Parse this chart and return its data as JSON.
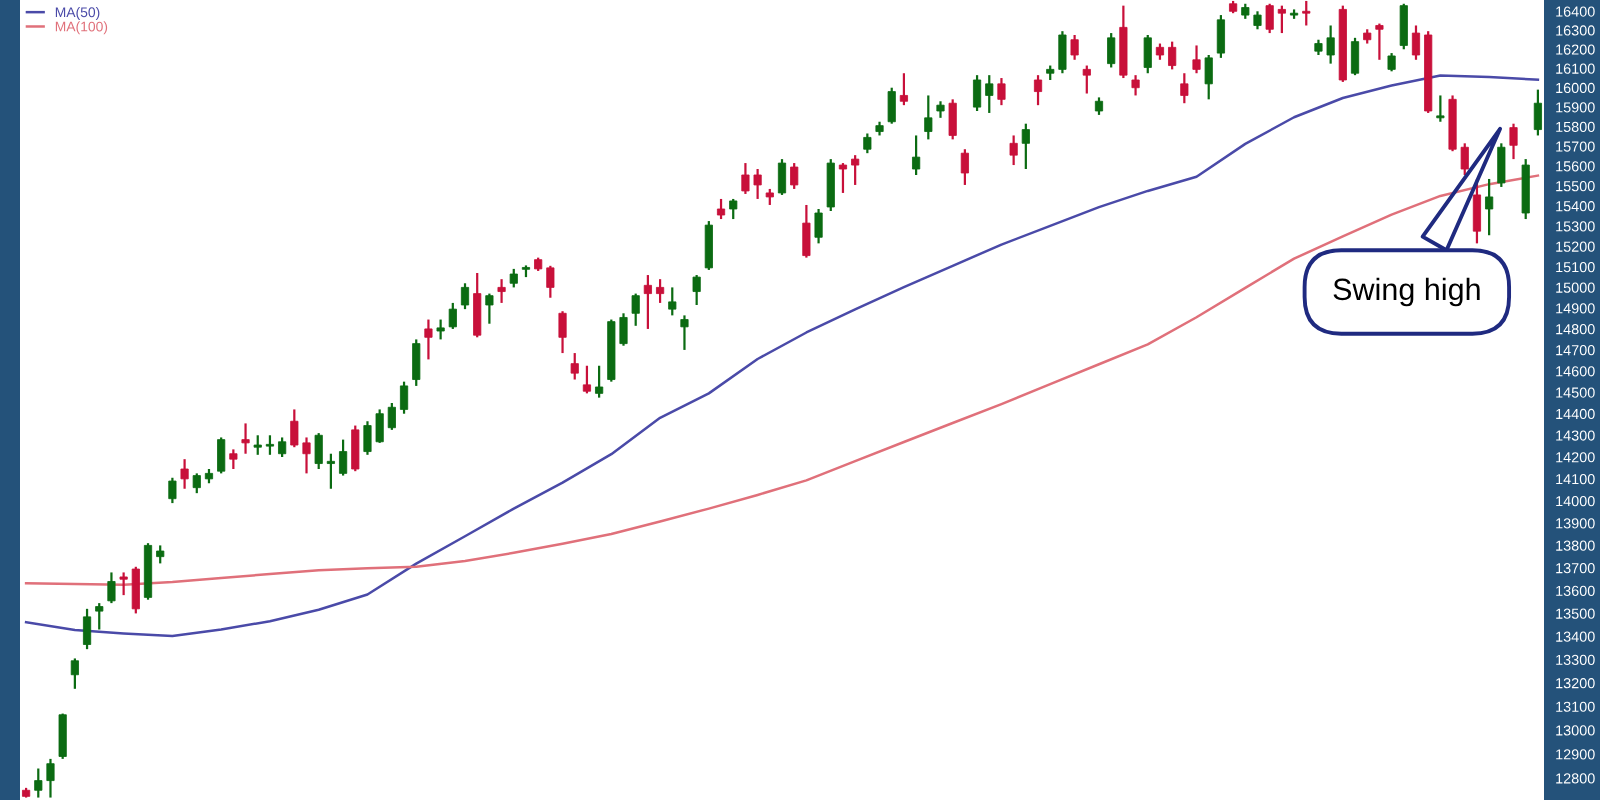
{
  "chart_data": {
    "type": "candlestick",
    "categories": [
      null,
      null,
      null,
      null,
      null,
      null,
      null,
      null,
      null,
      null,
      null,
      null,
      null,
      null,
      null,
      null,
      null,
      null,
      null,
      null,
      null,
      null,
      null,
      null,
      null,
      null,
      null,
      null,
      null,
      null,
      null,
      null,
      null,
      null,
      null,
      null,
      null,
      null,
      null,
      null,
      null,
      null,
      null,
      null,
      null,
      null,
      null,
      null,
      null,
      null,
      null,
      null,
      null,
      null,
      null,
      null,
      null,
      null,
      null,
      null,
      null,
      null,
      null,
      null,
      null,
      null,
      null,
      null,
      null,
      null,
      null,
      null,
      null,
      null,
      null,
      null,
      null,
      null,
      null,
      null,
      null,
      null,
      null,
      null,
      null,
      null,
      null,
      null,
      null,
      null,
      null,
      null,
      null,
      null,
      null,
      null,
      null,
      null,
      null,
      null,
      null,
      null,
      null,
      null,
      null,
      null,
      null,
      null,
      null,
      null,
      null,
      null,
      null,
      null,
      null,
      null,
      null,
      null,
      null,
      null,
      null,
      null,
      null,
      null,
      null
    ],
    "ohlc": [
      [
        12750,
        12760,
        12720,
        12725
      ],
      [
        12750,
        12840,
        12720,
        12790
      ],
      [
        12790,
        12880,
        12720,
        12860
      ],
      [
        12890,
        13070,
        12880,
        13065
      ],
      [
        13235,
        13305,
        13175,
        13295
      ],
      [
        13365,
        13520,
        13345,
        13485
      ],
      [
        13510,
        13545,
        13430,
        13530
      ],
      [
        13555,
        13680,
        13545,
        13640
      ],
      [
        13660,
        13680,
        13580,
        13650
      ],
      [
        13695,
        13705,
        13500,
        13520
      ],
      [
        13570,
        13810,
        13560,
        13800
      ],
      [
        13750,
        13800,
        13720,
        13775
      ],
      [
        14010,
        14105,
        13990,
        14090
      ],
      [
        14145,
        14190,
        14055,
        14100
      ],
      [
        14060,
        14125,
        14035,
        14115
      ],
      [
        14100,
        14145,
        14080,
        14125
      ],
      [
        14135,
        14290,
        14125,
        14280
      ],
      [
        14215,
        14235,
        14145,
        14190
      ],
      [
        14280,
        14355,
        14215,
        14265
      ],
      [
        14245,
        14300,
        14210,
        14255
      ],
      [
        14250,
        14300,
        14210,
        14258
      ],
      [
        14215,
        14290,
        14200,
        14270
      ],
      [
        14365,
        14420,
        14245,
        14255
      ],
      [
        14265,
        14290,
        14125,
        14215
      ],
      [
        14170,
        14310,
        14145,
        14300
      ],
      [
        14170,
        14215,
        14055,
        14180
      ],
      [
        14125,
        14280,
        14115,
        14225
      ],
      [
        14325,
        14345,
        14135,
        14145
      ],
      [
        14225,
        14365,
        14210,
        14345
      ],
      [
        14270,
        14420,
        14265,
        14400
      ],
      [
        14335,
        14450,
        14325,
        14430
      ],
      [
        14420,
        14550,
        14400,
        14530
      ],
      [
        14560,
        14750,
        14530,
        14730
      ],
      [
        14800,
        14845,
        14655,
        14760
      ],
      [
        14790,
        14845,
        14750,
        14805
      ],
      [
        14810,
        14925,
        14800,
        14895
      ],
      [
        14915,
        15020,
        14895,
        15000
      ],
      [
        14970,
        15070,
        14760,
        14770
      ],
      [
        14915,
        14970,
        14825,
        14960
      ],
      [
        15000,
        15040,
        14925,
        14980
      ],
      [
        15020,
        15090,
        15000,
        15065
      ],
      [
        15088,
        15107,
        15050,
        15097
      ],
      [
        15135,
        15145,
        15080,
        15090
      ],
      [
        15095,
        15105,
        14950,
        15000
      ],
      [
        14875,
        14885,
        14685,
        14760
      ],
      [
        14635,
        14685,
        14560,
        14590
      ],
      [
        14535,
        14625,
        14495,
        14505
      ],
      [
        14495,
        14625,
        14475,
        14525
      ],
      [
        14560,
        14845,
        14550,
        14835
      ],
      [
        14730,
        14875,
        14720,
        14855
      ],
      [
        14875,
        14970,
        14815,
        14960
      ],
      [
        15010,
        15060,
        14800,
        14970
      ],
      [
        15000,
        15040,
        14925,
        14970
      ],
      [
        14895,
        15000,
        14865,
        14930
      ],
      [
        14810,
        14865,
        14700,
        14845
      ],
      [
        14980,
        15060,
        14915,
        15050
      ],
      [
        15095,
        15325,
        15085,
        15305
      ],
      [
        15385,
        15435,
        15335,
        15355
      ],
      [
        15385,
        15435,
        15335,
        15425
      ],
      [
        15555,
        15615,
        15460,
        15475
      ],
      [
        15555,
        15585,
        15435,
        15505
      ],
      [
        15465,
        15485,
        15405,
        15445
      ],
      [
        15465,
        15635,
        15455,
        15615
      ],
      [
        15595,
        15615,
        15485,
        15505
      ],
      [
        15315,
        15405,
        15145,
        15155
      ],
      [
        15245,
        15385,
        15215,
        15365
      ],
      [
        15395,
        15635,
        15375,
        15615
      ],
      [
        15605,
        15615,
        15465,
        15585
      ],
      [
        15635,
        15655,
        15505,
        15605
      ],
      [
        15685,
        15765,
        15665,
        15745
      ],
      [
        15775,
        15825,
        15755,
        15805
      ],
      [
        15825,
        16000,
        15815,
        15980
      ],
      [
        15960,
        16075,
        15910,
        15930
      ],
      [
        15585,
        15755,
        15555,
        15645
      ],
      [
        15775,
        15960,
        15735,
        15845
      ],
      [
        15880,
        15930,
        15845,
        15910
      ],
      [
        15920,
        15940,
        15735,
        15755
      ],
      [
        15665,
        15685,
        15505,
        15565
      ],
      [
        15900,
        16065,
        15880,
        16040
      ],
      [
        15960,
        16065,
        15870,
        16020
      ],
      [
        16020,
        16050,
        15910,
        15940
      ],
      [
        15715,
        15755,
        15605,
        15655
      ],
      [
        15715,
        15815,
        15585,
        15785
      ],
      [
        16040,
        16065,
        15910,
        15980
      ],
      [
        16075,
        16115,
        16040,
        16095
      ],
      [
        16095,
        16295,
        16075,
        16275
      ],
      [
        16250,
        16275,
        16145,
        16170
      ],
      [
        16095,
        16115,
        15970,
        16065
      ],
      [
        15880,
        15950,
        15860,
        15930
      ],
      [
        16125,
        16285,
        16105,
        16260
      ],
      [
        16315,
        16430,
        16050,
        16065
      ],
      [
        16040,
        16065,
        15960,
        16000
      ],
      [
        16105,
        16275,
        16075,
        16260
      ],
      [
        16210,
        16230,
        16145,
        16170
      ],
      [
        16210,
        16240,
        16095,
        16115
      ],
      [
        16020,
        16075,
        15920,
        15960
      ],
      [
        16145,
        16220,
        16075,
        16095
      ],
      [
        16020,
        16170,
        15940,
        16155
      ],
      [
        16180,
        16380,
        16155,
        16355
      ],
      [
        16440,
        16455,
        16390,
        16400
      ],
      [
        16380,
        16440,
        16360,
        16420
      ],
      [
        16325,
        16400,
        16305,
        16380
      ],
      [
        16430,
        16440,
        16285,
        16305
      ],
      [
        16410,
        16430,
        16285,
        16390
      ],
      [
        16380,
        16410,
        16360,
        16390
      ],
      [
        16400,
        16455,
        16325,
        16390
      ],
      [
        16190,
        16250,
        16170,
        16230
      ],
      [
        16170,
        16325,
        16125,
        16260
      ],
      [
        16410,
        16430,
        16030,
        16040
      ],
      [
        16075,
        16260,
        16065,
        16240
      ],
      [
        16285,
        16305,
        16230,
        16250
      ],
      [
        16325,
        16335,
        16145,
        16305
      ],
      [
        16095,
        16180,
        16085,
        16165
      ],
      [
        16220,
        16440,
        16200,
        16430
      ],
      [
        16285,
        16325,
        16145,
        16170
      ],
      [
        16275,
        16295,
        15870,
        15880
      ],
      [
        15845,
        15960,
        15825,
        15855
      ],
      [
        15940,
        15960,
        15675,
        15685
      ],
      [
        15695,
        15715,
        15555,
        15585
      ],
      [
        15455,
        15535,
        15215,
        15275
      ],
      [
        15385,
        15535,
        15255,
        15445
      ],
      [
        15515,
        15715,
        15495,
        15695
      ],
      [
        15795,
        15815,
        15635,
        15705
      ],
      [
        15365,
        15635,
        15335,
        15605
      ],
      [
        15785,
        15990,
        15755,
        15920
      ]
    ],
    "series": [
      {
        "name": "MA(50)",
        "type": "line",
        "color": "#4a4aa8",
        "values": [
          13462,
          null,
          null,
          null,
          13428,
          null,
          null,
          null,
          13413,
          null,
          null,
          null,
          13402,
          null,
          null,
          null,
          13430,
          null,
          null,
          null,
          13466,
          null,
          null,
          null,
          13516,
          null,
          null,
          null,
          13583,
          null,
          null,
          null,
          13719,
          null,
          null,
          null,
          13841,
          null,
          null,
          null,
          13965,
          null,
          null,
          null,
          14083,
          null,
          null,
          null,
          14213,
          null,
          null,
          null,
          14381,
          null,
          null,
          null,
          14495,
          null,
          null,
          null,
          14657,
          null,
          null,
          null,
          14783,
          null,
          null,
          null,
          14894,
          null,
          null,
          null,
          15001,
          null,
          null,
          null,
          15105,
          null,
          null,
          null,
          15209,
          null,
          null,
          null,
          15301,
          null,
          null,
          null,
          15394,
          null,
          null,
          null,
          15475,
          null,
          null,
          null,
          15546,
          null,
          null,
          null,
          15712,
          null,
          null,
          null,
          15848,
          null,
          null,
          null,
          15947,
          null,
          null,
          null,
          16011,
          null,
          null,
          null,
          16063,
          null,
          null,
          null,
          16055,
          null,
          null,
          null,
          16042
        ]
      },
      {
        "name": "MA(100)",
        "type": "line",
        "color": "#e0707a",
        "values": [
          13632,
          null,
          null,
          null,
          13629,
          null,
          null,
          null,
          13626,
          null,
          null,
          null,
          13638,
          null,
          null,
          null,
          13655,
          null,
          null,
          null,
          13673,
          null,
          null,
          null,
          13690,
          null,
          null,
          null,
          13699,
          null,
          null,
          null,
          13705,
          null,
          null,
          null,
          13731,
          null,
          null,
          null,
          13767,
          null,
          null,
          null,
          13807,
          null,
          null,
          null,
          13851,
          null,
          null,
          null,
          13907,
          null,
          null,
          null,
          13965,
          null,
          null,
          null,
          14027,
          null,
          null,
          null,
          14093,
          null,
          null,
          null,
          14181,
          null,
          null,
          null,
          14269,
          null,
          null,
          null,
          14357,
          null,
          null,
          null,
          14445,
          null,
          null,
          null,
          14538,
          null,
          null,
          null,
          14632,
          null,
          null,
          null,
          14726,
          null,
          null,
          null,
          14856,
          null,
          null,
          null,
          14998,
          null,
          null,
          null,
          15140,
          null,
          null,
          null,
          15249,
          null,
          null,
          null,
          15357,
          null,
          null,
          null,
          15450,
          null,
          null,
          null,
          15509,
          null,
          null,
          null,
          15552
        ]
      }
    ],
    "colors": [
      "#c8103a",
      "#0b6b12",
      "#0b6b12",
      "#0b6b12",
      "#0b6b12",
      "#0b6b12",
      "#0b6b12",
      "#0b6b12",
      "#c8103a",
      "#c8103a",
      "#0b6b12",
      "#0b6b12",
      "#0b6b12",
      "#c8103a",
      "#0b6b12",
      "#0b6b12",
      "#0b6b12",
      "#c8103a",
      "#c8103a",
      "#0b6b12",
      "#0b6b12",
      "#0b6b12",
      "#c8103a",
      "#c8103a",
      "#0b6b12",
      "#0b6b12",
      "#0b6b12",
      "#c8103a",
      "#0b6b12",
      "#0b6b12",
      "#0b6b12",
      "#0b6b12",
      "#0b6b12",
      "#c8103a",
      "#0b6b12",
      "#0b6b12",
      "#0b6b12",
      "#c8103a",
      "#0b6b12",
      "#c8103a",
      "#0b6b12",
      "#0b6b12",
      "#c8103a",
      "#c8103a",
      "#c8103a",
      "#c8103a",
      "#c8103a",
      "#0b6b12",
      "#0b6b12",
      "#0b6b12",
      "#0b6b12",
      "#c8103a",
      "#c8103a",
      "#0b6b12",
      "#0b6b12",
      "#0b6b12",
      "#0b6b12",
      "#c8103a",
      "#0b6b12",
      "#c8103a",
      "#c8103a",
      "#c8103a",
      "#0b6b12",
      "#c8103a",
      "#c8103a",
      "#0b6b12",
      "#0b6b12",
      "#c8103a",
      "#c8103a",
      "#0b6b12",
      "#0b6b12",
      "#0b6b12",
      "#c8103a",
      "#0b6b12",
      "#0b6b12",
      "#0b6b12",
      "#c8103a",
      "#c8103a",
      "#0b6b12",
      "#0b6b12",
      "#c8103a",
      "#c8103a",
      "#0b6b12",
      "#c8103a",
      "#0b6b12",
      "#0b6b12",
      "#c8103a",
      "#c8103a",
      "#0b6b12",
      "#0b6b12",
      "#c8103a",
      "#c8103a",
      "#0b6b12",
      "#c8103a",
      "#c8103a",
      "#c8103a",
      "#c8103a",
      "#0b6b12",
      "#0b6b12",
      "#c8103a",
      "#0b6b12",
      "#0b6b12",
      "#c8103a",
      "#c8103a",
      "#0b6b12",
      "#c8103a",
      "#0b6b12",
      "#0b6b12",
      "#c8103a",
      "#0b6b12",
      "#c8103a",
      "#c8103a",
      "#0b6b12",
      "#0b6b12",
      "#c8103a",
      "#c8103a",
      "#0b6b12",
      "#c8103a",
      "#c8103a",
      "#c8103a",
      "#0b6b12",
      "#0b6b12",
      "#c8103a",
      "#0b6b12",
      "#0b6b12"
    ],
    "ylim": [
      12710,
      16460
    ],
    "yticks": [
      12800,
      12900,
      13000,
      13100,
      13200,
      13300,
      13400,
      13500,
      13600,
      13700,
      13800,
      13900,
      14000,
      14100,
      14200,
      14300,
      14400,
      14500,
      14600,
      14700,
      14800,
      14900,
      15000,
      15100,
      15200,
      15300,
      15400,
      15500,
      15600,
      15700,
      15800,
      15900,
      16000,
      16100,
      16200,
      16300,
      16400
    ],
    "log": "y",
    "grid": false,
    "legend": "top left",
    "annotations": [
      "Swing high"
    ]
  }
}
